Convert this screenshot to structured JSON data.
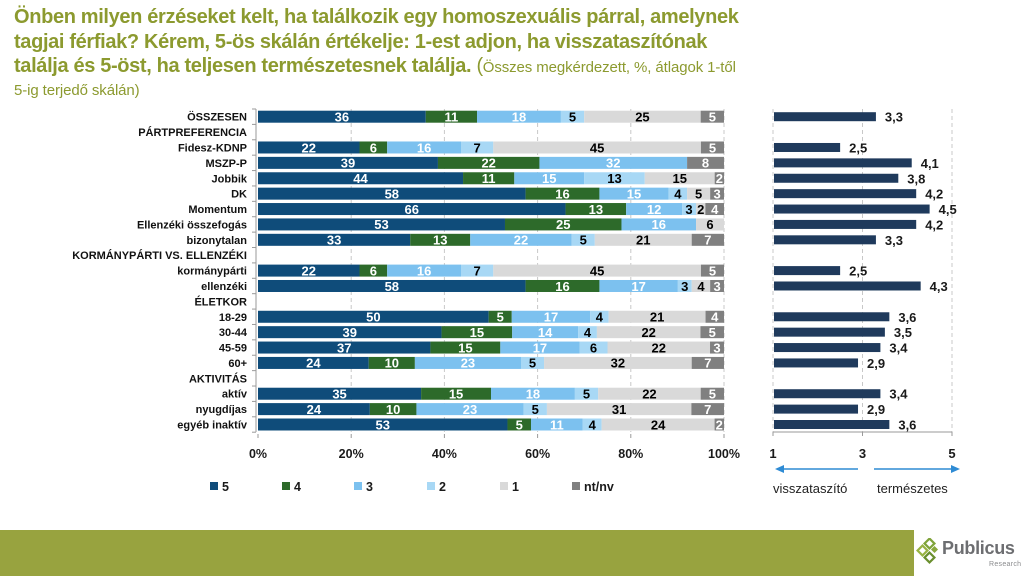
{
  "header": {
    "title_line_1": "Önben milyen érzéseket kelt, ha találkozik egy homoszexuális párral, amelynek",
    "title_line_2": "tagjai férfiak? Kérem, 5-ös skálán értékelje: 1-est adjon, ha visszataszítónak",
    "title_line_3": "találja és 5-öst, ha teljesen természetesnek találja. ",
    "subtitle_paren": "(",
    "subtitle_line_3": "Összes megkérdezett, %, átlagok 1-től",
    "subtitle_line_4": "5-ig terjedő skálán)"
  },
  "logo": {
    "name": "Publicus",
    "tagline": "Research",
    "brand_color": "#98a33f"
  },
  "chart_data": [
    {
      "type": "bar",
      "orientation": "horizontal",
      "stacked": "percent",
      "title": "Önben milyen érzéseket kelt, ha találkozik egy homoszexuális párral, amelynek tagjai férfiak? Kérem, 5-ös skálán értékelje: 1-est adjon, ha visszataszítónak találja és 5-öst, ha teljesen természetesnek találja. (Összes megkérdezett, %, átlagok 1-től 5-ig terjedő skálán)",
      "xlabel": "",
      "ylabel": "",
      "xlim": [
        0,
        100
      ],
      "xticks": [
        "0%",
        "20%",
        "40%",
        "60%",
        "80%",
        "100%"
      ],
      "grid": "vertical dashed",
      "legend_position": "bottom",
      "categories": [
        "ÖSSZESEN",
        "PÁRTPREFERENCIA",
        "Fidesz-KDNP",
        "MSZP-P",
        "Jobbik",
        "DK",
        "Momentum",
        "Ellenzéki összefogás",
        "bizonytalan",
        "KORMÁNYPÁRTI VS. ELLENZÉKI",
        "kormánypárti",
        "ellenzéki",
        "ÉLETKOR",
        "18-29",
        "30-44",
        "45-59",
        "60+",
        "AKTIVITÁS",
        "aktív",
        "nyugdíjas",
        "egyéb inaktív"
      ],
      "series": [
        {
          "name": "5",
          "color": "#0f4c7a",
          "label_color": "#ffffff",
          "values": [
            36,
            null,
            22,
            39,
            44,
            58,
            66,
            53,
            33,
            null,
            22,
            58,
            null,
            50,
            39,
            37,
            24,
            null,
            35,
            24,
            53
          ]
        },
        {
          "name": "4",
          "color": "#2d6a2a",
          "label_color": "#ffffff",
          "values": [
            11,
            null,
            6,
            22,
            11,
            16,
            13,
            25,
            13,
            null,
            6,
            16,
            null,
            5,
            15,
            15,
            10,
            null,
            15,
            10,
            5
          ]
        },
        {
          "name": "3",
          "color": "#7cc1ef",
          "label_color": "#ffffff",
          "values": [
            18,
            null,
            16,
            32,
            15,
            15,
            12,
            16,
            22,
            null,
            16,
            17,
            null,
            17,
            14,
            17,
            23,
            null,
            18,
            23,
            11
          ]
        },
        {
          "name": "2",
          "color": "#a8d8f5",
          "label_color": "#000000",
          "values": [
            5,
            null,
            7,
            0,
            13,
            4,
            3,
            0,
            5,
            null,
            7,
            3,
            null,
            4,
            4,
            6,
            5,
            null,
            5,
            5,
            4
          ]
        },
        {
          "name": "1",
          "color": "#d9d9d9",
          "label_color": "#000000",
          "values": [
            25,
            null,
            45,
            0,
            15,
            5,
            2,
            6,
            21,
            null,
            45,
            4,
            null,
            21,
            22,
            22,
            32,
            null,
            22,
            31,
            24
          ]
        },
        {
          "name": "nt/nv",
          "color": "#808080",
          "label_color": "#ffffff",
          "values": [
            5,
            null,
            5,
            8,
            2,
            3,
            4,
            0,
            7,
            null,
            5,
            3,
            null,
            4,
            5,
            3,
            7,
            null,
            5,
            7,
            2
          ]
        }
      ]
    },
    {
      "type": "bar",
      "orientation": "horizontal",
      "title": "Átlagok 1-től 5-ig terjedő skálán",
      "xlim": [
        1,
        5
      ],
      "xticks": [
        "1",
        "3",
        "5"
      ],
      "grid": "vertical dashed",
      "color": "#1f3a5c",
      "categories": [
        "ÖSSZESEN",
        "PÁRTPREFERENCIA",
        "Fidesz-KDNP",
        "MSZP-P",
        "Jobbik",
        "DK",
        "Momentum",
        "Ellenzéki összefogás",
        "bizonytalan",
        "KORMÁNYPÁRTI VS. ELLENZÉKI",
        "kormánypárti",
        "ellenzéki",
        "ÉLETKOR",
        "18-29",
        "30-44",
        "45-59",
        "60+",
        "AKTIVITÁS",
        "aktív",
        "nyugdíjas",
        "egyéb inaktív"
      ],
      "values": [
        3.3,
        null,
        2.5,
        4.1,
        3.8,
        4.2,
        4.5,
        4.2,
        3.3,
        null,
        2.5,
        4.3,
        null,
        3.6,
        3.5,
        3.4,
        2.9,
        null,
        3.4,
        2.9,
        3.6
      ],
      "value_labels": [
        "3,3",
        null,
        "2,5",
        "4,1",
        "3,8",
        "4,2",
        "4,5",
        "4,2",
        "3,3",
        null,
        "2,5",
        "4,3",
        null,
        "3,6",
        "3,5",
        "3,4",
        "2,9",
        null,
        "3,4",
        "2,9",
        "3,6"
      ],
      "annotations": {
        "left_arrow_label": "visszataszító",
        "right_arrow_label": "természetes",
        "arrow_color": "#2e8bd4"
      }
    }
  ]
}
